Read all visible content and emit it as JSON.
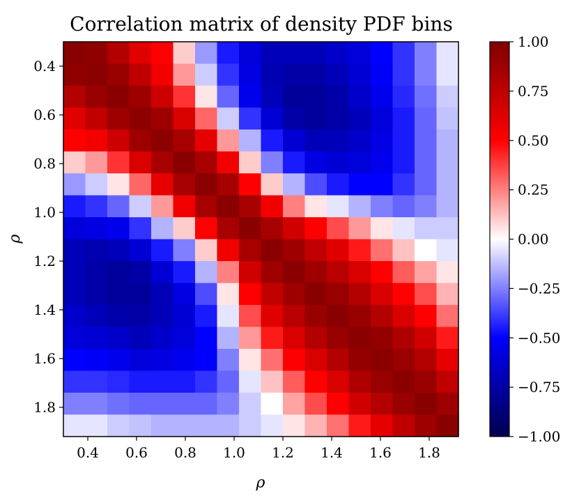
{
  "chart_data": {
    "type": "heatmap",
    "title": "Correlation matrix of density PDF bins",
    "xlabel": "ρ",
    "ylabel": "ρ",
    "colormap": "seismic",
    "x_range": [
      0.3,
      1.92
    ],
    "y_range": [
      0.3,
      1.92
    ],
    "bin_centers": [
      0.345,
      0.435,
      0.525,
      0.615,
      0.705,
      0.795,
      0.885,
      0.975,
      1.065,
      1.155,
      1.245,
      1.335,
      1.425,
      1.515,
      1.605,
      1.695,
      1.785,
      1.875
    ],
    "x_ticks": [
      "0.4",
      "0.6",
      "0.8",
      "1.0",
      "1.2",
      "1.4",
      "1.6",
      "1.8"
    ],
    "y_ticks": [
      "0.4",
      "0.6",
      "0.8",
      "1.0",
      "1.2",
      "1.4",
      "1.6",
      "1.8"
    ],
    "tick_values": [
      0.4,
      0.6,
      0.8,
      1.0,
      1.2,
      1.4,
      1.6,
      1.8
    ],
    "colorbar_range": [
      -1.0,
      1.0
    ],
    "colorbar_ticks": [
      "1.00",
      "0.75",
      "0.50",
      "0.25",
      "0.00",
      "−0.25",
      "−0.50",
      "−0.75",
      "−1.00"
    ],
    "colorbar_tick_values": [
      1.0,
      0.75,
      0.5,
      0.25,
      0.0,
      -0.25,
      -0.5,
      -0.75,
      -1.0
    ],
    "matrix": [
      [
        0.97,
        0.94,
        0.8,
        0.62,
        0.5,
        0.1,
        -0.2,
        -0.45,
        -0.6,
        -0.7,
        -0.7,
        -0.7,
        -0.65,
        -0.6,
        -0.5,
        -0.4,
        -0.25,
        -0.05
      ],
      [
        0.94,
        0.96,
        0.9,
        0.75,
        0.55,
        0.2,
        -0.1,
        -0.4,
        -0.58,
        -0.72,
        -0.75,
        -0.75,
        -0.7,
        -0.62,
        -0.52,
        -0.4,
        -0.25,
        -0.05
      ],
      [
        0.8,
        0.9,
        0.96,
        0.88,
        0.7,
        0.4,
        0.05,
        -0.3,
        -0.55,
        -0.7,
        -0.78,
        -0.78,
        -0.74,
        -0.65,
        -0.55,
        -0.42,
        -0.28,
        -0.1
      ],
      [
        0.62,
        0.75,
        0.88,
        0.95,
        0.88,
        0.65,
        0.3,
        -0.1,
        -0.4,
        -0.62,
        -0.75,
        -0.78,
        -0.75,
        -0.7,
        -0.6,
        -0.45,
        -0.3,
        -0.12
      ],
      [
        0.5,
        0.55,
        0.7,
        0.88,
        0.95,
        0.85,
        0.6,
        0.2,
        -0.15,
        -0.45,
        -0.62,
        -0.7,
        -0.7,
        -0.65,
        -0.58,
        -0.45,
        -0.3,
        -0.15
      ],
      [
        0.1,
        0.2,
        0.4,
        0.65,
        0.85,
        0.96,
        0.85,
        0.55,
        0.1,
        -0.25,
        -0.45,
        -0.58,
        -0.62,
        -0.6,
        -0.55,
        -0.45,
        -0.3,
        -0.15
      ],
      [
        -0.2,
        -0.1,
        0.05,
        0.3,
        0.6,
        0.85,
        0.96,
        0.85,
        0.5,
        0.1,
        -0.15,
        -0.35,
        -0.45,
        -0.5,
        -0.5,
        -0.4,
        -0.3,
        -0.15
      ],
      [
        -0.45,
        -0.4,
        -0.3,
        -0.1,
        0.2,
        0.55,
        0.85,
        0.96,
        0.85,
        0.55,
        0.25,
        0.05,
        -0.05,
        -0.15,
        -0.25,
        -0.3,
        -0.25,
        -0.15
      ],
      [
        -0.6,
        -0.58,
        -0.55,
        -0.4,
        -0.15,
        0.1,
        0.5,
        0.85,
        0.96,
        0.85,
        0.68,
        0.5,
        0.35,
        0.2,
        0.05,
        -0.05,
        -0.1,
        -0.1
      ],
      [
        -0.7,
        -0.72,
        -0.7,
        -0.62,
        -0.45,
        -0.25,
        0.1,
        0.55,
        0.85,
        0.96,
        0.88,
        0.75,
        0.62,
        0.45,
        0.28,
        0.12,
        0.0,
        -0.05
      ],
      [
        -0.7,
        -0.75,
        -0.78,
        -0.75,
        -0.62,
        -0.45,
        -0.15,
        0.25,
        0.68,
        0.88,
        0.96,
        0.88,
        0.78,
        0.65,
        0.5,
        0.32,
        0.18,
        0.05
      ],
      [
        -0.7,
        -0.75,
        -0.78,
        -0.78,
        -0.7,
        -0.58,
        -0.35,
        0.05,
        0.5,
        0.75,
        0.88,
        0.96,
        0.9,
        0.8,
        0.65,
        0.5,
        0.35,
        0.15
      ],
      [
        -0.65,
        -0.7,
        -0.74,
        -0.75,
        -0.7,
        -0.62,
        -0.45,
        -0.05,
        0.35,
        0.62,
        0.78,
        0.9,
        0.96,
        0.9,
        0.8,
        0.65,
        0.5,
        0.28
      ],
      [
        -0.6,
        -0.62,
        -0.65,
        -0.7,
        -0.65,
        -0.6,
        -0.5,
        -0.15,
        0.2,
        0.45,
        0.65,
        0.8,
        0.9,
        0.96,
        0.92,
        0.82,
        0.68,
        0.45
      ],
      [
        -0.5,
        -0.52,
        -0.55,
        -0.6,
        -0.58,
        -0.55,
        -0.5,
        -0.25,
        0.05,
        0.28,
        0.5,
        0.65,
        0.8,
        0.92,
        0.96,
        0.9,
        0.8,
        0.6
      ],
      [
        -0.4,
        -0.4,
        -0.42,
        -0.45,
        -0.45,
        -0.45,
        -0.4,
        -0.3,
        -0.05,
        0.12,
        0.32,
        0.5,
        0.65,
        0.82,
        0.9,
        0.96,
        0.9,
        0.75
      ],
      [
        -0.25,
        -0.25,
        -0.28,
        -0.3,
        -0.3,
        -0.3,
        -0.3,
        -0.25,
        -0.1,
        0.0,
        0.18,
        0.35,
        0.5,
        0.68,
        0.8,
        0.9,
        0.97,
        0.88
      ],
      [
        -0.05,
        -0.05,
        -0.1,
        -0.12,
        -0.15,
        -0.15,
        -0.15,
        -0.15,
        -0.1,
        -0.05,
        0.05,
        0.15,
        0.28,
        0.45,
        0.6,
        0.75,
        0.88,
        0.97
      ]
    ]
  }
}
